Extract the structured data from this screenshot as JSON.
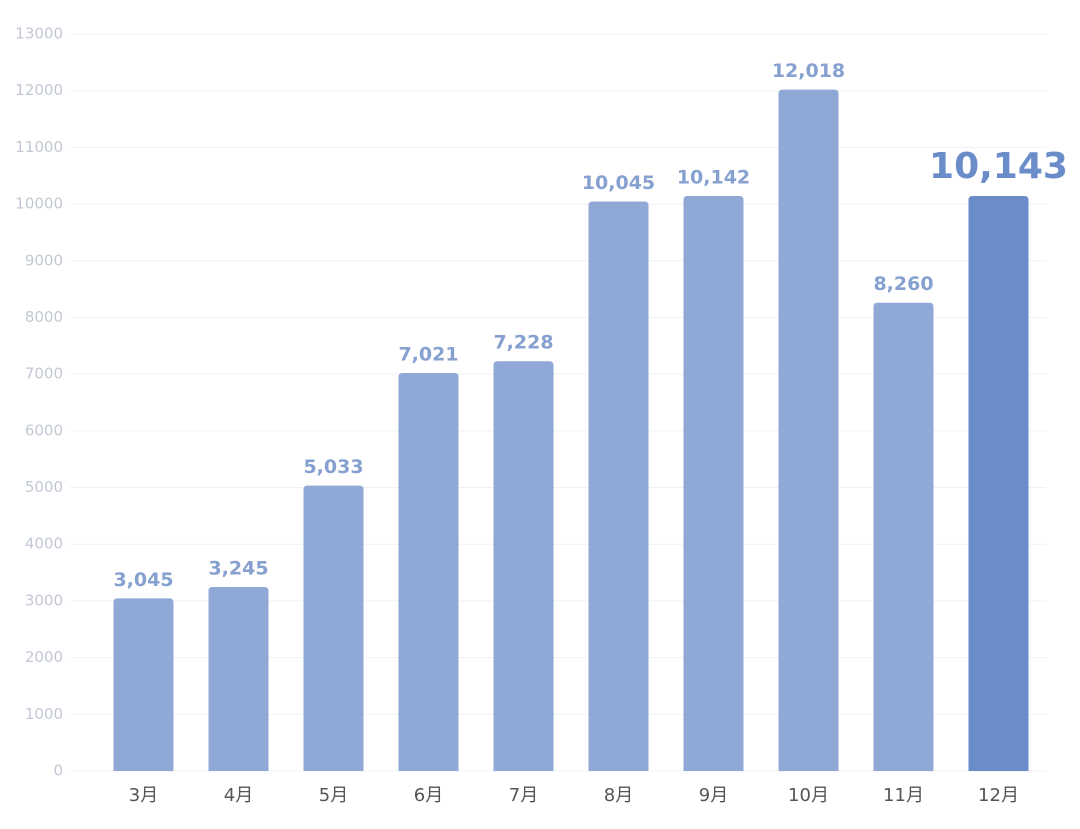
{
  "chart_data": {
    "type": "bar",
    "categories": [
      "3月",
      "4月",
      "5月",
      "6月",
      "7月",
      "8月",
      "9月",
      "10月",
      "11月",
      "12月"
    ],
    "values": [
      3045,
      3245,
      5033,
      7021,
      7228,
      10045,
      10142,
      12018,
      8260,
      10143
    ],
    "value_labels": [
      "3,045",
      "3,245",
      "5,033",
      "7,021",
      "7,228",
      "10,045",
      "10,142",
      "12,018",
      "8,260",
      "10,143"
    ],
    "colors": [
      "#8fa8d6",
      "#8fa8d6",
      "#8fa8d6",
      "#8fa8d6",
      "#8fa8d6",
      "#8fa8d6",
      "#8fa8d6",
      "#8fa8d6",
      "#8fa8d6",
      "#6a8cc8"
    ],
    "ylim": [
      0,
      13000
    ],
    "yticks": [
      0,
      1000,
      2000,
      3000,
      4000,
      5000,
      6000,
      7000,
      8000,
      9000,
      10000,
      11000,
      12000,
      13000
    ],
    "grid": true
  }
}
